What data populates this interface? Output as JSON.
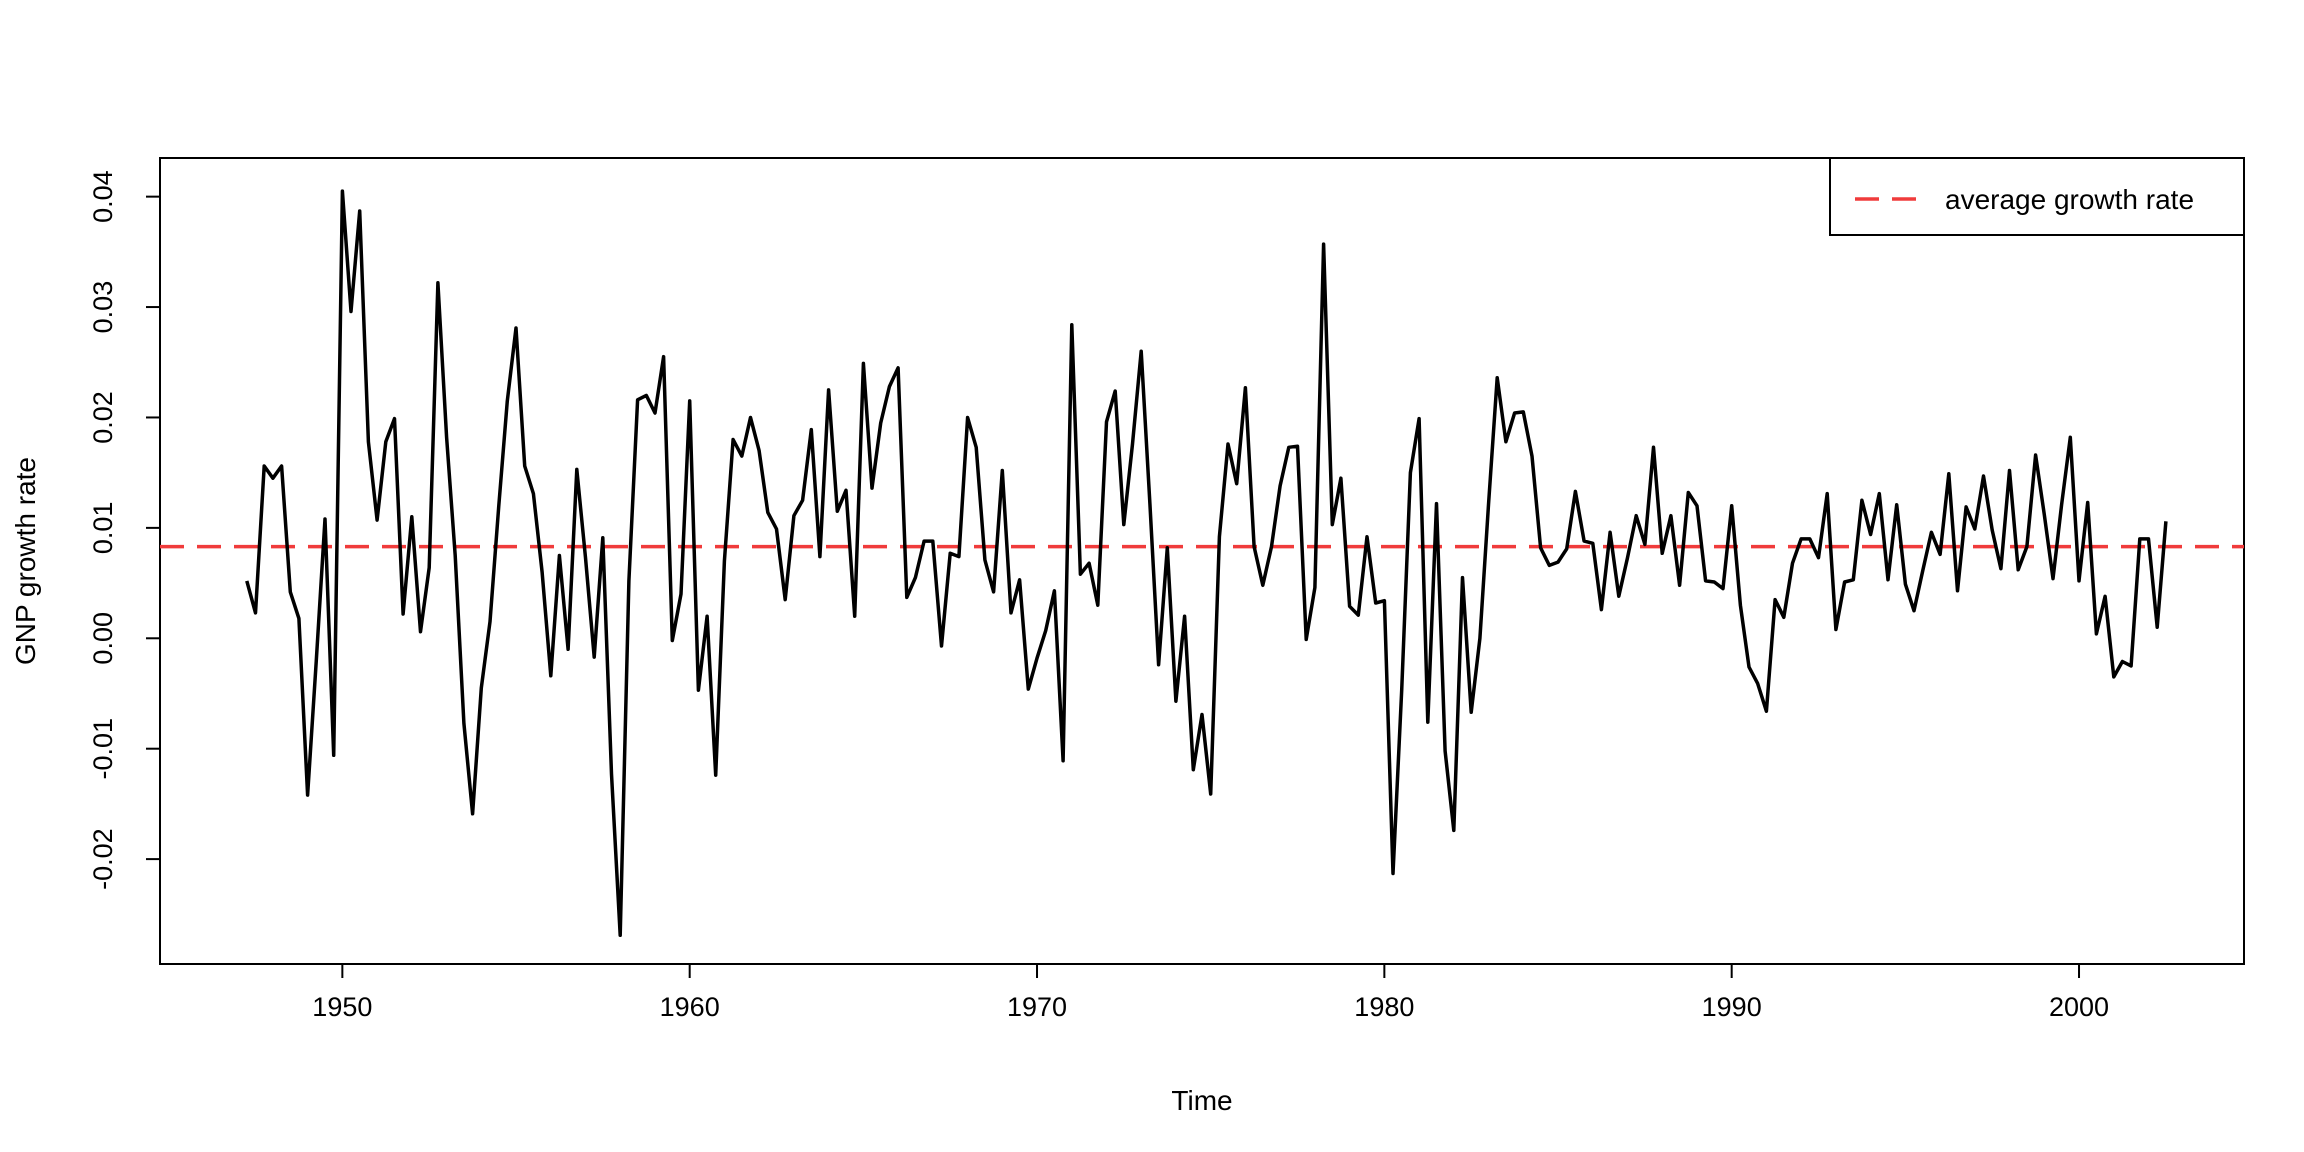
{
  "chart_data": {
    "type": "line",
    "title": "",
    "xlabel": "Time",
    "ylabel": "GNP growth rate",
    "xlim": [
      1944.75,
      2004.75
    ],
    "ylim": [
      -0.0295,
      0.0435
    ],
    "xticks": [
      1950,
      1960,
      1970,
      1980,
      1990,
      2000
    ],
    "xtick_labels": [
      "1950",
      "1960",
      "1970",
      "1980",
      "1990",
      "2000"
    ],
    "yticks": [
      -0.02,
      -0.01,
      0.0,
      0.01,
      0.02,
      0.03,
      0.04
    ],
    "ytick_labels": [
      "-0.02",
      "-0.01",
      "0.00",
      "0.01",
      "0.02",
      "0.03",
      "0.04"
    ],
    "grid": false,
    "legend": {
      "position": "top-right",
      "entries": [
        "average growth rate"
      ]
    },
    "series": [
      {
        "x_start": 1947.25,
        "x_step": 0.25,
        "color": "#000000",
        "values": [
          0.0052,
          0.0023,
          0.0156,
          0.0145,
          0.0156,
          0.0042,
          0.0018,
          -0.0142,
          -0.002,
          0.0108,
          -0.0106,
          0.0405,
          0.0296,
          0.0387,
          0.0178,
          0.0107,
          0.0178,
          0.0199,
          0.0022,
          0.011,
          0.0006,
          0.0064,
          0.0322,
          0.0182,
          0.0075,
          -0.0077,
          -0.0159,
          -0.0045,
          0.0015,
          0.0119,
          0.0215,
          0.0281,
          0.0156,
          0.0131,
          0.006,
          -0.0034,
          0.0075,
          -0.001,
          0.0153,
          0.0073,
          -0.0017,
          0.0091,
          -0.0123,
          -0.0269,
          0.0052,
          0.0216,
          0.022,
          0.0204,
          0.0255,
          -0.0002,
          0.004,
          0.0215,
          -0.0047,
          0.002,
          -0.0124,
          0.007,
          0.018,
          0.0165,
          0.02,
          0.017,
          0.0114,
          0.0099,
          0.0035,
          0.0111,
          0.0125,
          0.0189,
          0.0074,
          0.0225,
          0.0115,
          0.0134,
          0.002,
          0.0249,
          0.0136,
          0.0195,
          0.0228,
          0.0245,
          0.0037,
          0.0055,
          0.0088,
          0.0088,
          -0.0007,
          0.0077,
          0.0074,
          0.02,
          0.0173,
          0.0071,
          0.0042,
          0.0152,
          0.0023,
          0.0053,
          -0.0046,
          -0.0018,
          0.0007,
          0.0043,
          -0.0111,
          0.0284,
          0.0058,
          0.0068,
          0.003,
          0.0196,
          0.0224,
          0.0103,
          0.0176,
          0.026,
          0.0122,
          -0.0024,
          0.0082,
          -0.0057,
          0.002,
          -0.0119,
          -0.0069,
          -0.0141,
          0.0092,
          0.0176,
          0.014,
          0.0227,
          0.0083,
          0.0048,
          0.0083,
          0.0138,
          0.0173,
          0.0174,
          -0.0001,
          0.0046,
          0.0357,
          0.0103,
          0.0145,
          0.0029,
          0.0021,
          0.0092,
          0.0032,
          0.0034,
          -0.0213,
          -0.0047,
          0.015,
          0.0199,
          -0.0076,
          0.0122,
          -0.0102,
          -0.0174,
          0.0055,
          -0.0067,
          0.0,
          0.0121,
          0.0236,
          0.0178,
          0.0204,
          0.0205,
          0.0165,
          0.0082,
          0.0066,
          0.0069,
          0.0081,
          0.0133,
          0.0088,
          0.0086,
          0.0026,
          0.0096,
          0.0038,
          0.0073,
          0.0111,
          0.0085,
          0.0173,
          0.0077,
          0.0111,
          0.0048,
          0.0132,
          0.012,
          0.0052,
          0.0051,
          0.0045,
          0.012,
          0.003,
          -0.0026,
          -0.0041,
          -0.0066,
          0.0035,
          0.0019,
          0.0068,
          0.009,
          0.009,
          0.0073,
          0.0131,
          0.0008,
          0.0051,
          0.0053,
          0.0125,
          0.0094,
          0.0131,
          0.0053,
          0.0121,
          0.0049,
          0.0025,
          0.0061,
          0.0096,
          0.0076,
          0.0149,
          0.0043,
          0.0119,
          0.0099,
          0.0147,
          0.0098,
          0.0063,
          0.0152,
          0.0062,
          0.0083,
          0.0166,
          0.0112,
          0.0054,
          0.0121,
          0.0182,
          0.0052,
          0.0123,
          0.0004,
          0.0038,
          -0.0035,
          -0.0021,
          -0.0025,
          0.009,
          0.009,
          0.001,
          0.0106
        ]
      },
      {
        "name": "average growth rate",
        "type": "hline",
        "color": "#f03b3b",
        "dash": "dashed",
        "value": 0.0083
      }
    ]
  }
}
